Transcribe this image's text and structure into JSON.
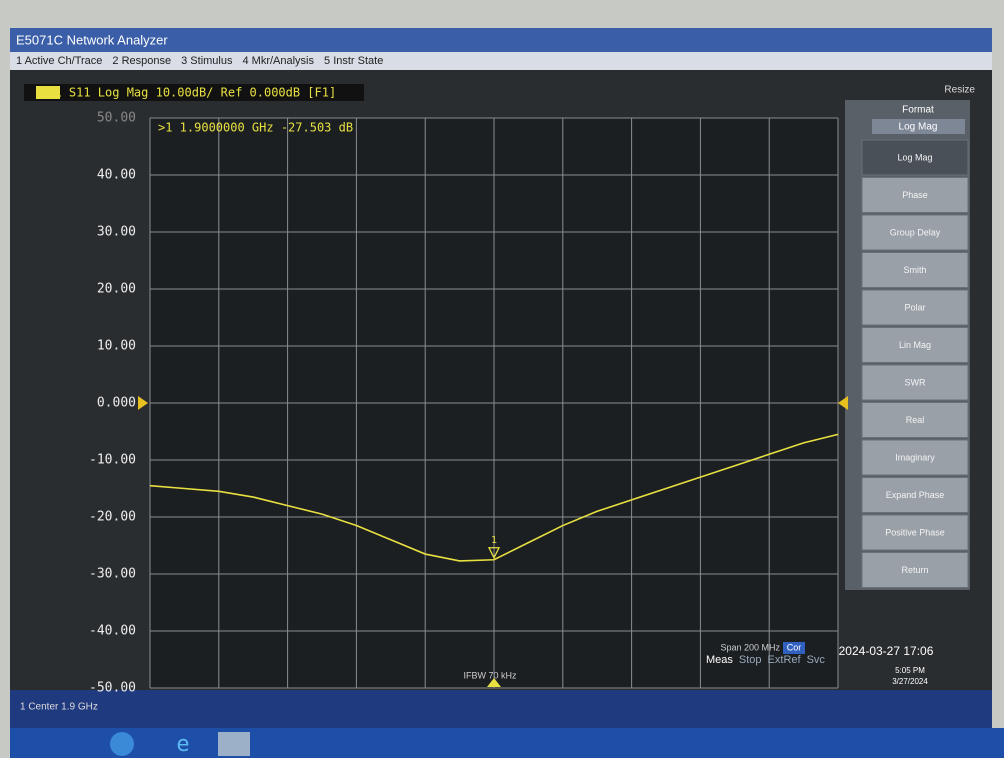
{
  "window": {
    "title": "E5071C Network Analyzer",
    "resize": "Resize"
  },
  "menu": [
    "1 Active Ch/Trace",
    "2 Response",
    "3 Stimulus",
    "4 Mkr/Analysis",
    "5 Instr State"
  ],
  "trace_header": "Tr1 S11 Log Mag 10.00dB/ Ref 0.000dB [F1]",
  "chart_data": {
    "type": "line",
    "x": [
      1.8,
      1.81,
      1.82,
      1.83,
      1.84,
      1.85,
      1.86,
      1.87,
      1.88,
      1.89,
      1.9,
      1.91,
      1.92,
      1.93,
      1.94,
      1.95,
      1.96,
      1.97,
      1.98,
      1.99,
      2.0
    ],
    "series": [
      {
        "name": "S11",
        "color": "#e8e040",
        "values": [
          -14.5,
          -15,
          -15.5,
          -16.5,
          -18,
          -19.5,
          -21.5,
          -24,
          -26.5,
          -27.7,
          -27.5,
          -24.5,
          -21.5,
          -19,
          -17,
          -15,
          -13,
          -11,
          -9,
          -7,
          -5.5
        ]
      }
    ],
    "xlim": [
      1.8,
      2.0
    ],
    "xticks": [
      1.8,
      1.82,
      1.84,
      1.86,
      1.88,
      1.9,
      1.92,
      1.94,
      1.96,
      1.98,
      2.0
    ],
    "ylim": [
      -50,
      50
    ],
    "yticks": [
      {
        "value": 50,
        "label": "50.00"
      },
      {
        "value": 40,
        "label": "40.00"
      },
      {
        "value": 30,
        "label": "30.00"
      },
      {
        "value": 20,
        "label": "20.00"
      },
      {
        "value": 10,
        "label": "10.00"
      },
      {
        "value": 0,
        "label": "0.000"
      },
      {
        "value": -10,
        "label": "-10.00"
      },
      {
        "value": -20,
        "label": "-20.00"
      },
      {
        "value": -30,
        "label": "-30.00"
      },
      {
        "value": -40,
        "label": "-40.00"
      },
      {
        "value": -50,
        "label": "-50.00"
      }
    ],
    "grid": true,
    "ref": 0,
    "marker": {
      "label": "1",
      "x": 1.9,
      "value": -27.503,
      "readout": ">1  1.9000000 GHz -27.503 dB"
    }
  },
  "softkeys": {
    "title": "Format",
    "current": "Log Mag",
    "keys": [
      "Log Mag",
      "Phase",
      "Group Delay",
      "Smith",
      "Polar",
      "Lin Mag",
      "SWR",
      "Real",
      "Imaginary",
      "Expand Phase",
      "Positive Phase",
      "Return"
    ]
  },
  "footer": {
    "ifbw": "IFBW 70 kHz",
    "span": "Span 200 MHz",
    "cor": "Cor",
    "center": "1 Center 1.9 GHz"
  },
  "status": {
    "items": [
      "Meas",
      "Stop",
      "ExtRef",
      "Svc"
    ],
    "datetime": "2024-03-27 17:06"
  },
  "taskbar": {
    "time": "5:05 PM",
    "date": "3/27/2024"
  }
}
